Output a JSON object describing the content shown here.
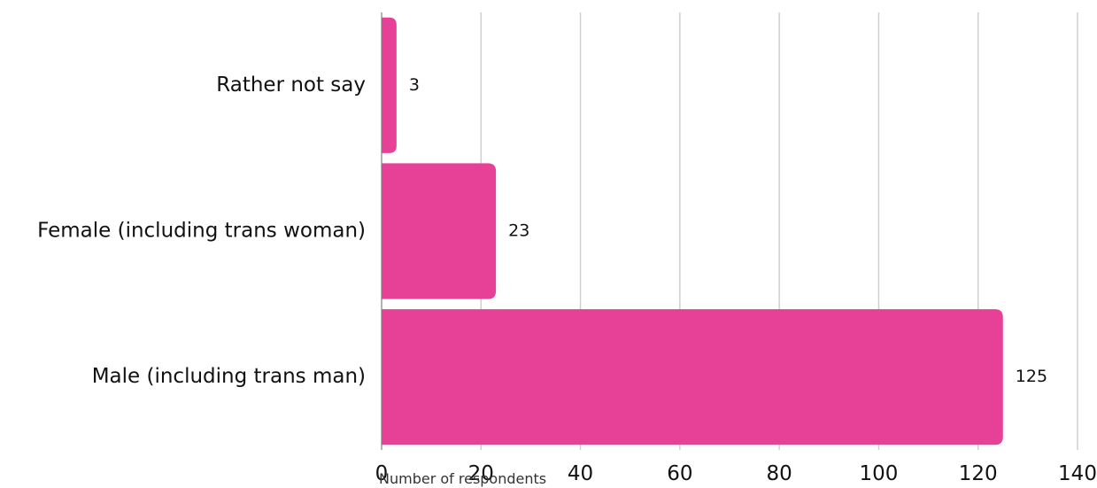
{
  "chart_data": {
    "type": "bar",
    "orientation": "horizontal",
    "title": "",
    "categories": [
      "Rather not say",
      "Female (including trans woman)",
      "Male (including trans man)"
    ],
    "values": [
      3,
      23,
      125
    ],
    "value_labels": [
      "3",
      "23",
      "125"
    ],
    "xlabel": "Number of respondents",
    "ylabel": "",
    "xlim": [
      0,
      140
    ],
    "x_ticks": [
      0,
      20,
      40,
      60,
      80,
      100,
      120,
      140
    ],
    "x_tick_labels": [
      "0",
      "20",
      "40",
      "60",
      "80",
      "100",
      "120",
      "140"
    ],
    "grid": true,
    "bar_color": "#E64097",
    "title_color": "#1F4E8C"
  }
}
